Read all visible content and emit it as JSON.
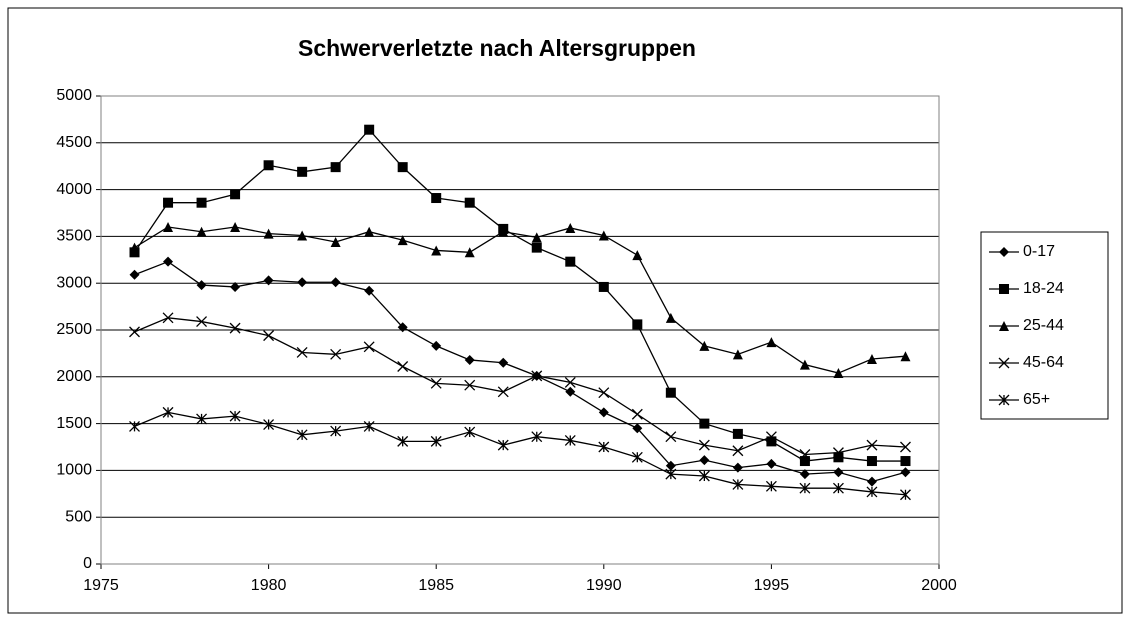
{
  "chart_data": {
    "type": "line",
    "title": "Schwerverletzte nach Altersgruppen",
    "x": [
      1976,
      1977,
      1978,
      1979,
      1980,
      1981,
      1982,
      1983,
      1984,
      1985,
      1986,
      1987,
      1988,
      1989,
      1990,
      1991,
      1992,
      1993,
      1994,
      1995,
      1996,
      1997,
      1998,
      1999
    ],
    "series": [
      {
        "name": "0-17",
        "color": "#000000",
        "marker": "diamond",
        "values": [
          3090,
          3230,
          2980,
          2960,
          3030,
          3010,
          3010,
          2920,
          2530,
          2330,
          2180,
          2150,
          2010,
          1840,
          1620,
          1450,
          1050,
          1110,
          1030,
          1070,
          960,
          980,
          880,
          980
        ]
      },
      {
        "name": "18-24",
        "color": "#000000",
        "marker": "square",
        "values": [
          3330,
          3860,
          3860,
          3950,
          4260,
          4190,
          4240,
          4640,
          4240,
          3910,
          3860,
          3580,
          3380,
          3230,
          2960,
          2560,
          1830,
          1500,
          1390,
          1310,
          1100,
          1140,
          1100,
          1100
        ]
      },
      {
        "name": "25-44",
        "color": "#000000",
        "marker": "triangle",
        "values": [
          3380,
          3600,
          3550,
          3600,
          3530,
          3510,
          3440,
          3550,
          3460,
          3350,
          3330,
          3550,
          3490,
          3590,
          3510,
          3300,
          2630,
          2330,
          2240,
          2370,
          2130,
          2040,
          2190,
          2220
        ]
      },
      {
        "name": "45-64",
        "color": "#000000",
        "marker": "x",
        "values": [
          2480,
          2630,
          2590,
          2520,
          2440,
          2260,
          2240,
          2320,
          2110,
          1930,
          1910,
          1840,
          2010,
          1940,
          1830,
          1600,
          1360,
          1270,
          1210,
          1360,
          1170,
          1190,
          1270,
          1250
        ]
      },
      {
        "name": "65+",
        "color": "#000000",
        "marker": "star",
        "values": [
          1470,
          1620,
          1550,
          1580,
          1490,
          1380,
          1420,
          1470,
          1310,
          1310,
          1410,
          1270,
          1360,
          1320,
          1250,
          1140,
          960,
          940,
          850,
          830,
          810,
          810,
          770,
          740
        ]
      }
    ],
    "xlim": [
      1975,
      2000
    ],
    "xticks": [
      1975,
      1980,
      1985,
      1990,
      1995,
      2000
    ],
    "ylim": [
      0,
      5000
    ],
    "yticks": [
      0,
      500,
      1000,
      1500,
      2000,
      2500,
      3000,
      3500,
      4000,
      4500,
      5000
    ],
    "grid": true,
    "legend": "right"
  }
}
